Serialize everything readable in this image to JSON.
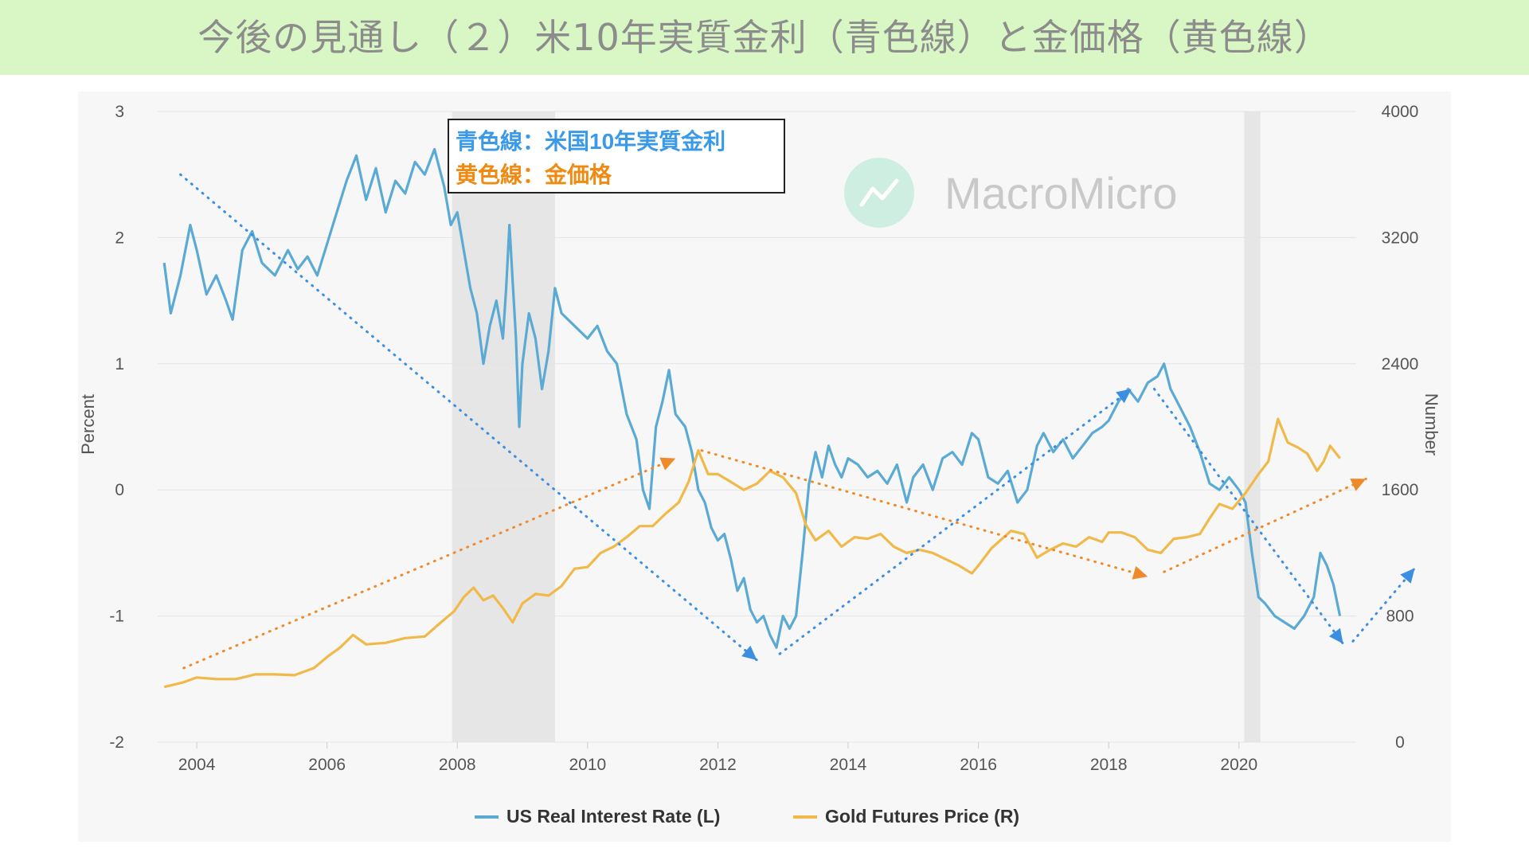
{
  "slide_title": "今後の見通し（２）米10年実質金利（青色線）と金価格（黄色線）",
  "colors": {
    "banner_bg": "#d9f7c5",
    "plot_bg": "#f7f7f7",
    "blue": "#5aaad4",
    "gold": "#f0b94a",
    "trend_blue": "#3b8ee0",
    "trend_orange": "#ef8a2a",
    "recession": "#e6e6e6",
    "grid": "#e4e4e4",
    "axis_text": "#555555",
    "annot_blue": "#3b9ae8",
    "annot_orange": "#ef8a12"
  },
  "annotation": {
    "line1": "青色線：米国10年実質金利",
    "line2": "黄色線：金価格"
  },
  "watermark": {
    "icon": "chart-line-icon",
    "text": "MacroMicro"
  },
  "chart_data": {
    "type": "line",
    "title": "",
    "xlabel": "",
    "ylabel_left": "Percent",
    "ylabel_right": "Number",
    "xlim": [
      2003.4,
      2021.8
    ],
    "ylim_left": [
      -2,
      3
    ],
    "ylim_right": [
      0,
      4000
    ],
    "x_ticks": [
      "2004",
      "2006",
      "2008",
      "2010",
      "2012",
      "2014",
      "2016",
      "2018",
      "2020"
    ],
    "y_left_ticks": [
      "3",
      "2",
      "1",
      "0",
      "-1",
      "-2"
    ],
    "y_right_ticks": [
      "4000",
      "3200",
      "2400",
      "1600",
      "800",
      "0"
    ],
    "grid": true,
    "legend_position": "bottom-center",
    "recession_shading": [
      [
        2007.92,
        2009.5
      ],
      [
        2020.08,
        2020.33
      ]
    ],
    "series": [
      {
        "name": "US Real Interest Rate (L)",
        "axis": "left",
        "color": "#5aaad4",
        "points": [
          [
            2003.5,
            1.8
          ],
          [
            2003.6,
            1.4
          ],
          [
            2003.75,
            1.7
          ],
          [
            2003.9,
            2.1
          ],
          [
            2004.0,
            1.9
          ],
          [
            2004.15,
            1.55
          ],
          [
            2004.3,
            1.7
          ],
          [
            2004.45,
            1.5
          ],
          [
            2004.55,
            1.35
          ],
          [
            2004.7,
            1.9
          ],
          [
            2004.85,
            2.05
          ],
          [
            2005.0,
            1.8
          ],
          [
            2005.2,
            1.7
          ],
          [
            2005.4,
            1.9
          ],
          [
            2005.55,
            1.75
          ],
          [
            2005.7,
            1.85
          ],
          [
            2005.85,
            1.7
          ],
          [
            2006.0,
            1.95
          ],
          [
            2006.15,
            2.2
          ],
          [
            2006.3,
            2.45
          ],
          [
            2006.45,
            2.65
          ],
          [
            2006.6,
            2.3
          ],
          [
            2006.75,
            2.55
          ],
          [
            2006.9,
            2.2
          ],
          [
            2007.05,
            2.45
          ],
          [
            2007.2,
            2.35
          ],
          [
            2007.35,
            2.6
          ],
          [
            2007.5,
            2.5
          ],
          [
            2007.65,
            2.7
          ],
          [
            2007.8,
            2.4
          ],
          [
            2007.9,
            2.1
          ],
          [
            2008.0,
            2.2
          ],
          [
            2008.1,
            1.9
          ],
          [
            2008.2,
            1.6
          ],
          [
            2008.3,
            1.4
          ],
          [
            2008.4,
            1.0
          ],
          [
            2008.5,
            1.3
          ],
          [
            2008.6,
            1.5
          ],
          [
            2008.7,
            1.2
          ],
          [
            2008.75,
            1.6
          ],
          [
            2008.8,
            2.1
          ],
          [
            2008.9,
            1.2
          ],
          [
            2008.95,
            0.5
          ],
          [
            2009.0,
            1.0
          ],
          [
            2009.1,
            1.4
          ],
          [
            2009.2,
            1.2
          ],
          [
            2009.3,
            0.8
          ],
          [
            2009.4,
            1.1
          ],
          [
            2009.5,
            1.6
          ],
          [
            2009.6,
            1.4
          ],
          [
            2009.8,
            1.3
          ],
          [
            2010.0,
            1.2
          ],
          [
            2010.15,
            1.3
          ],
          [
            2010.3,
            1.1
          ],
          [
            2010.45,
            1.0
          ],
          [
            2010.6,
            0.6
          ],
          [
            2010.75,
            0.4
          ],
          [
            2010.85,
            0.0
          ],
          [
            2010.95,
            -0.15
          ],
          [
            2011.05,
            0.5
          ],
          [
            2011.15,
            0.7
          ],
          [
            2011.25,
            0.95
          ],
          [
            2011.35,
            0.6
          ],
          [
            2011.5,
            0.5
          ],
          [
            2011.6,
            0.3
          ],
          [
            2011.7,
            0.0
          ],
          [
            2011.8,
            -0.1
          ],
          [
            2011.9,
            -0.3
          ],
          [
            2012.0,
            -0.4
          ],
          [
            2012.1,
            -0.35
          ],
          [
            2012.2,
            -0.55
          ],
          [
            2012.3,
            -0.8
          ],
          [
            2012.4,
            -0.7
          ],
          [
            2012.5,
            -0.95
          ],
          [
            2012.6,
            -1.05
          ],
          [
            2012.7,
            -1.0
          ],
          [
            2012.8,
            -1.15
          ],
          [
            2012.9,
            -1.25
          ],
          [
            2013.0,
            -1.0
          ],
          [
            2013.1,
            -1.1
          ],
          [
            2013.2,
            -1.0
          ],
          [
            2013.3,
            -0.5
          ],
          [
            2013.4,
            0.05
          ],
          [
            2013.5,
            0.3
          ],
          [
            2013.6,
            0.1
          ],
          [
            2013.7,
            0.35
          ],
          [
            2013.8,
            0.2
          ],
          [
            2013.9,
            0.1
          ],
          [
            2014.0,
            0.25
          ],
          [
            2014.15,
            0.2
          ],
          [
            2014.3,
            0.1
          ],
          [
            2014.45,
            0.15
          ],
          [
            2014.6,
            0.05
          ],
          [
            2014.75,
            0.2
          ],
          [
            2014.9,
            -0.1
          ],
          [
            2015.0,
            0.1
          ],
          [
            2015.15,
            0.2
          ],
          [
            2015.3,
            0.0
          ],
          [
            2015.45,
            0.25
          ],
          [
            2015.6,
            0.3
          ],
          [
            2015.75,
            0.2
          ],
          [
            2015.9,
            0.45
          ],
          [
            2016.0,
            0.4
          ],
          [
            2016.15,
            0.1
          ],
          [
            2016.3,
            0.05
          ],
          [
            2016.45,
            0.15
          ],
          [
            2016.6,
            -0.1
          ],
          [
            2016.75,
            0.0
          ],
          [
            2016.9,
            0.35
          ],
          [
            2017.0,
            0.45
          ],
          [
            2017.15,
            0.3
          ],
          [
            2017.3,
            0.4
          ],
          [
            2017.45,
            0.25
          ],
          [
            2017.6,
            0.35
          ],
          [
            2017.75,
            0.45
          ],
          [
            2017.9,
            0.5
          ],
          [
            2018.0,
            0.55
          ],
          [
            2018.15,
            0.7
          ],
          [
            2018.3,
            0.8
          ],
          [
            2018.45,
            0.7
          ],
          [
            2018.6,
            0.85
          ],
          [
            2018.75,
            0.9
          ],
          [
            2018.85,
            1.0
          ],
          [
            2018.95,
            0.8
          ],
          [
            2019.1,
            0.65
          ],
          [
            2019.25,
            0.5
          ],
          [
            2019.4,
            0.3
          ],
          [
            2019.55,
            0.05
          ],
          [
            2019.7,
            0.0
          ],
          [
            2019.85,
            0.1
          ],
          [
            2020.0,
            0.0
          ],
          [
            2020.1,
            -0.1
          ],
          [
            2020.2,
            -0.5
          ],
          [
            2020.3,
            -0.85
          ],
          [
            2020.4,
            -0.9
          ],
          [
            2020.55,
            -1.0
          ],
          [
            2020.7,
            -1.05
          ],
          [
            2020.85,
            -1.1
          ],
          [
            2021.0,
            -1.0
          ],
          [
            2021.15,
            -0.85
          ],
          [
            2021.25,
            -0.5
          ],
          [
            2021.35,
            -0.6
          ],
          [
            2021.45,
            -0.75
          ],
          [
            2021.55,
            -1.0
          ]
        ]
      },
      {
        "name": "Gold Futures Price (R)",
        "axis": "right",
        "color": "#f0b94a",
        "points": [
          [
            2003.5,
            350
          ],
          [
            2003.8,
            380
          ],
          [
            2004.0,
            410
          ],
          [
            2004.3,
            400
          ],
          [
            2004.6,
            400
          ],
          [
            2004.9,
            430
          ],
          [
            2005.2,
            430
          ],
          [
            2005.5,
            425
          ],
          [
            2005.8,
            470
          ],
          [
            2006.0,
            540
          ],
          [
            2006.2,
            600
          ],
          [
            2006.4,
            680
          ],
          [
            2006.6,
            620
          ],
          [
            2006.9,
            630
          ],
          [
            2007.2,
            660
          ],
          [
            2007.5,
            670
          ],
          [
            2007.75,
            760
          ],
          [
            2007.95,
            830
          ],
          [
            2008.1,
            920
          ],
          [
            2008.25,
            980
          ],
          [
            2008.4,
            900
          ],
          [
            2008.55,
            930
          ],
          [
            2008.7,
            850
          ],
          [
            2008.85,
            760
          ],
          [
            2009.0,
            880
          ],
          [
            2009.2,
            940
          ],
          [
            2009.4,
            930
          ],
          [
            2009.6,
            990
          ],
          [
            2009.8,
            1100
          ],
          [
            2010.0,
            1110
          ],
          [
            2010.2,
            1200
          ],
          [
            2010.4,
            1240
          ],
          [
            2010.6,
            1300
          ],
          [
            2010.8,
            1370
          ],
          [
            2011.0,
            1370
          ],
          [
            2011.2,
            1450
          ],
          [
            2011.4,
            1520
          ],
          [
            2011.55,
            1650
          ],
          [
            2011.7,
            1850
          ],
          [
            2011.85,
            1700
          ],
          [
            2012.0,
            1700
          ],
          [
            2012.2,
            1650
          ],
          [
            2012.4,
            1600
          ],
          [
            2012.6,
            1640
          ],
          [
            2012.8,
            1720
          ],
          [
            2013.0,
            1680
          ],
          [
            2013.2,
            1580
          ],
          [
            2013.35,
            1380
          ],
          [
            2013.5,
            1280
          ],
          [
            2013.7,
            1340
          ],
          [
            2013.9,
            1240
          ],
          [
            2014.1,
            1300
          ],
          [
            2014.3,
            1290
          ],
          [
            2014.5,
            1320
          ],
          [
            2014.7,
            1240
          ],
          [
            2014.9,
            1200
          ],
          [
            2015.1,
            1220
          ],
          [
            2015.3,
            1200
          ],
          [
            2015.5,
            1160
          ],
          [
            2015.7,
            1120
          ],
          [
            2015.9,
            1070
          ],
          [
            2016.0,
            1120
          ],
          [
            2016.2,
            1230
          ],
          [
            2016.5,
            1340
          ],
          [
            2016.7,
            1320
          ],
          [
            2016.9,
            1170
          ],
          [
            2017.1,
            1220
          ],
          [
            2017.3,
            1260
          ],
          [
            2017.5,
            1240
          ],
          [
            2017.7,
            1300
          ],
          [
            2017.9,
            1270
          ],
          [
            2018.0,
            1330
          ],
          [
            2018.2,
            1330
          ],
          [
            2018.4,
            1300
          ],
          [
            2018.6,
            1220
          ],
          [
            2018.8,
            1200
          ],
          [
            2019.0,
            1290
          ],
          [
            2019.2,
            1300
          ],
          [
            2019.4,
            1320
          ],
          [
            2019.55,
            1420
          ],
          [
            2019.7,
            1510
          ],
          [
            2019.9,
            1480
          ],
          [
            2020.1,
            1580
          ],
          [
            2020.3,
            1700
          ],
          [
            2020.45,
            1780
          ],
          [
            2020.6,
            2050
          ],
          [
            2020.75,
            1900
          ],
          [
            2020.9,
            1870
          ],
          [
            2021.05,
            1830
          ],
          [
            2021.2,
            1720
          ],
          [
            2021.3,
            1780
          ],
          [
            2021.4,
            1880
          ],
          [
            2021.55,
            1800
          ]
        ]
      }
    ],
    "trend_arrows": [
      {
        "color": "blue",
        "from": [
          2003.75,
          2.5
        ],
        "to": [
          2012.6,
          -1.35
        ]
      },
      {
        "color": "blue",
        "from": [
          2012.95,
          -1.3
        ],
        "to": [
          2018.35,
          0.8
        ]
      },
      {
        "color": "blue",
        "from": [
          2018.7,
          0.8
        ],
        "to": [
          2021.6,
          -1.22
        ]
      },
      {
        "color": "blue",
        "from": [
          2021.75,
          -1.2
        ],
        "to": [
          2022.7,
          -0.62
        ]
      },
      {
        "color": "orange",
        "from": [
          2003.8,
          470
        ],
        "to": [
          2011.35,
          1800
        ]
      },
      {
        "color": "orange",
        "from": [
          2011.75,
          1850
        ],
        "to": [
          2018.6,
          1050
        ]
      },
      {
        "color": "orange",
        "from": [
          2018.85,
          1080
        ],
        "to": [
          2021.95,
          1670
        ]
      }
    ]
  }
}
